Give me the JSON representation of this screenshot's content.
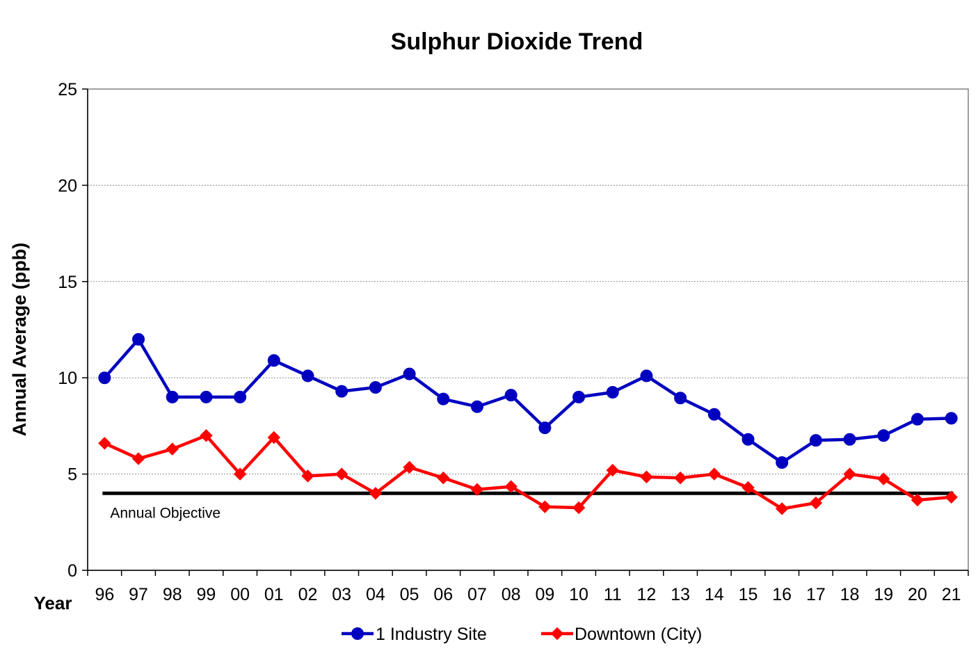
{
  "chart_data": {
    "type": "line",
    "title": "Sulphur Dioxide Trend",
    "xlabel": "Year",
    "ylabel": "Annual Average (ppb)",
    "categories": [
      "96",
      "97",
      "98",
      "99",
      "00",
      "01",
      "02",
      "03",
      "04",
      "05",
      "06",
      "07",
      "08",
      "09",
      "10",
      "11",
      "12",
      "13",
      "14",
      "15",
      "16",
      "17",
      "18",
      "19",
      "20",
      "21"
    ],
    "ylim": [
      0,
      25
    ],
    "yticks": [
      "0",
      "5",
      "10",
      "15",
      "20",
      "25"
    ],
    "grid": "horizontal",
    "legend_position": "bottom",
    "series": [
      {
        "name": "1 Industry Site",
        "color": "#0000c0",
        "marker": "circle",
        "values": [
          10.0,
          12.0,
          9.0,
          9.0,
          9.0,
          10.9,
          10.1,
          9.3,
          9.5,
          10.2,
          8.9,
          8.5,
          9.1,
          7.4,
          9.0,
          9.25,
          10.1,
          8.95,
          8.1,
          6.8,
          5.6,
          6.75,
          6.8,
          7.0,
          7.85,
          7.9
        ]
      },
      {
        "name": "Downtown (City)",
        "color": "#ff0000",
        "marker": "diamond",
        "values": [
          6.6,
          5.8,
          6.3,
          7.0,
          5.0,
          6.9,
          4.9,
          5.0,
          4.0,
          5.35,
          4.8,
          4.2,
          4.35,
          3.3,
          3.25,
          5.2,
          4.85,
          4.8,
          5.0,
          4.3,
          3.2,
          3.5,
          5.0,
          4.75,
          3.65,
          3.8
        ]
      }
    ],
    "reference_line": {
      "label": "Annual Objective",
      "value": 4,
      "color": "#000000"
    }
  }
}
